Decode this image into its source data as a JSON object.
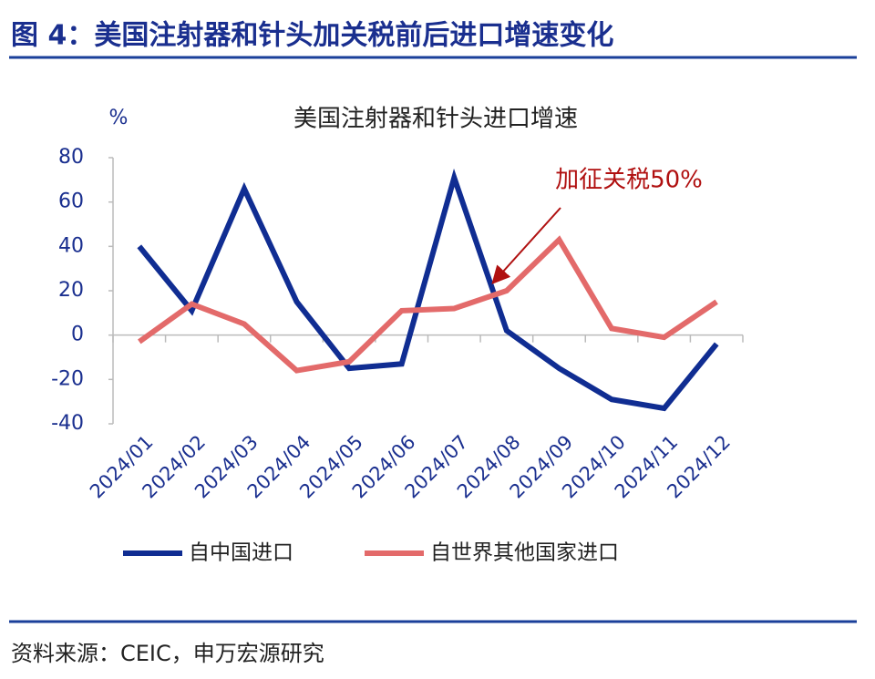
{
  "header": {
    "title": "图 4：美国注射器和针头加关税前后进口增速变化"
  },
  "chart_data": {
    "type": "line",
    "title": "美国注射器和针头进口增速",
    "y_label": "%",
    "categories": [
      "2024/01",
      "2024/02",
      "2024/03",
      "2024/04",
      "2024/05",
      "2024/06",
      "2024/07",
      "2024/08",
      "2024/09",
      "2024/10",
      "2024/11",
      "2024/12"
    ],
    "series": [
      {
        "name": "自中国进口",
        "color": "#102d92",
        "values": [
          40,
          11,
          66,
          15,
          -15,
          -13,
          71,
          2,
          -15,
          -29,
          -33,
          -4
        ]
      },
      {
        "name": "自世界其他国家进口",
        "color": "#e36a6a",
        "values": [
          -3,
          14,
          5,
          -16,
          -12,
          11,
          12,
          20,
          43,
          3,
          -1,
          15
        ]
      }
    ],
    "ylim": [
      -40,
      80
    ],
    "yticks": [
      -40,
      -20,
      0,
      20,
      40,
      60,
      80
    ],
    "annotation": {
      "text": "加征关税50%",
      "color": "#b01010"
    }
  },
  "footer": {
    "source": "资料来源：CEIC，申万宏源研究"
  }
}
